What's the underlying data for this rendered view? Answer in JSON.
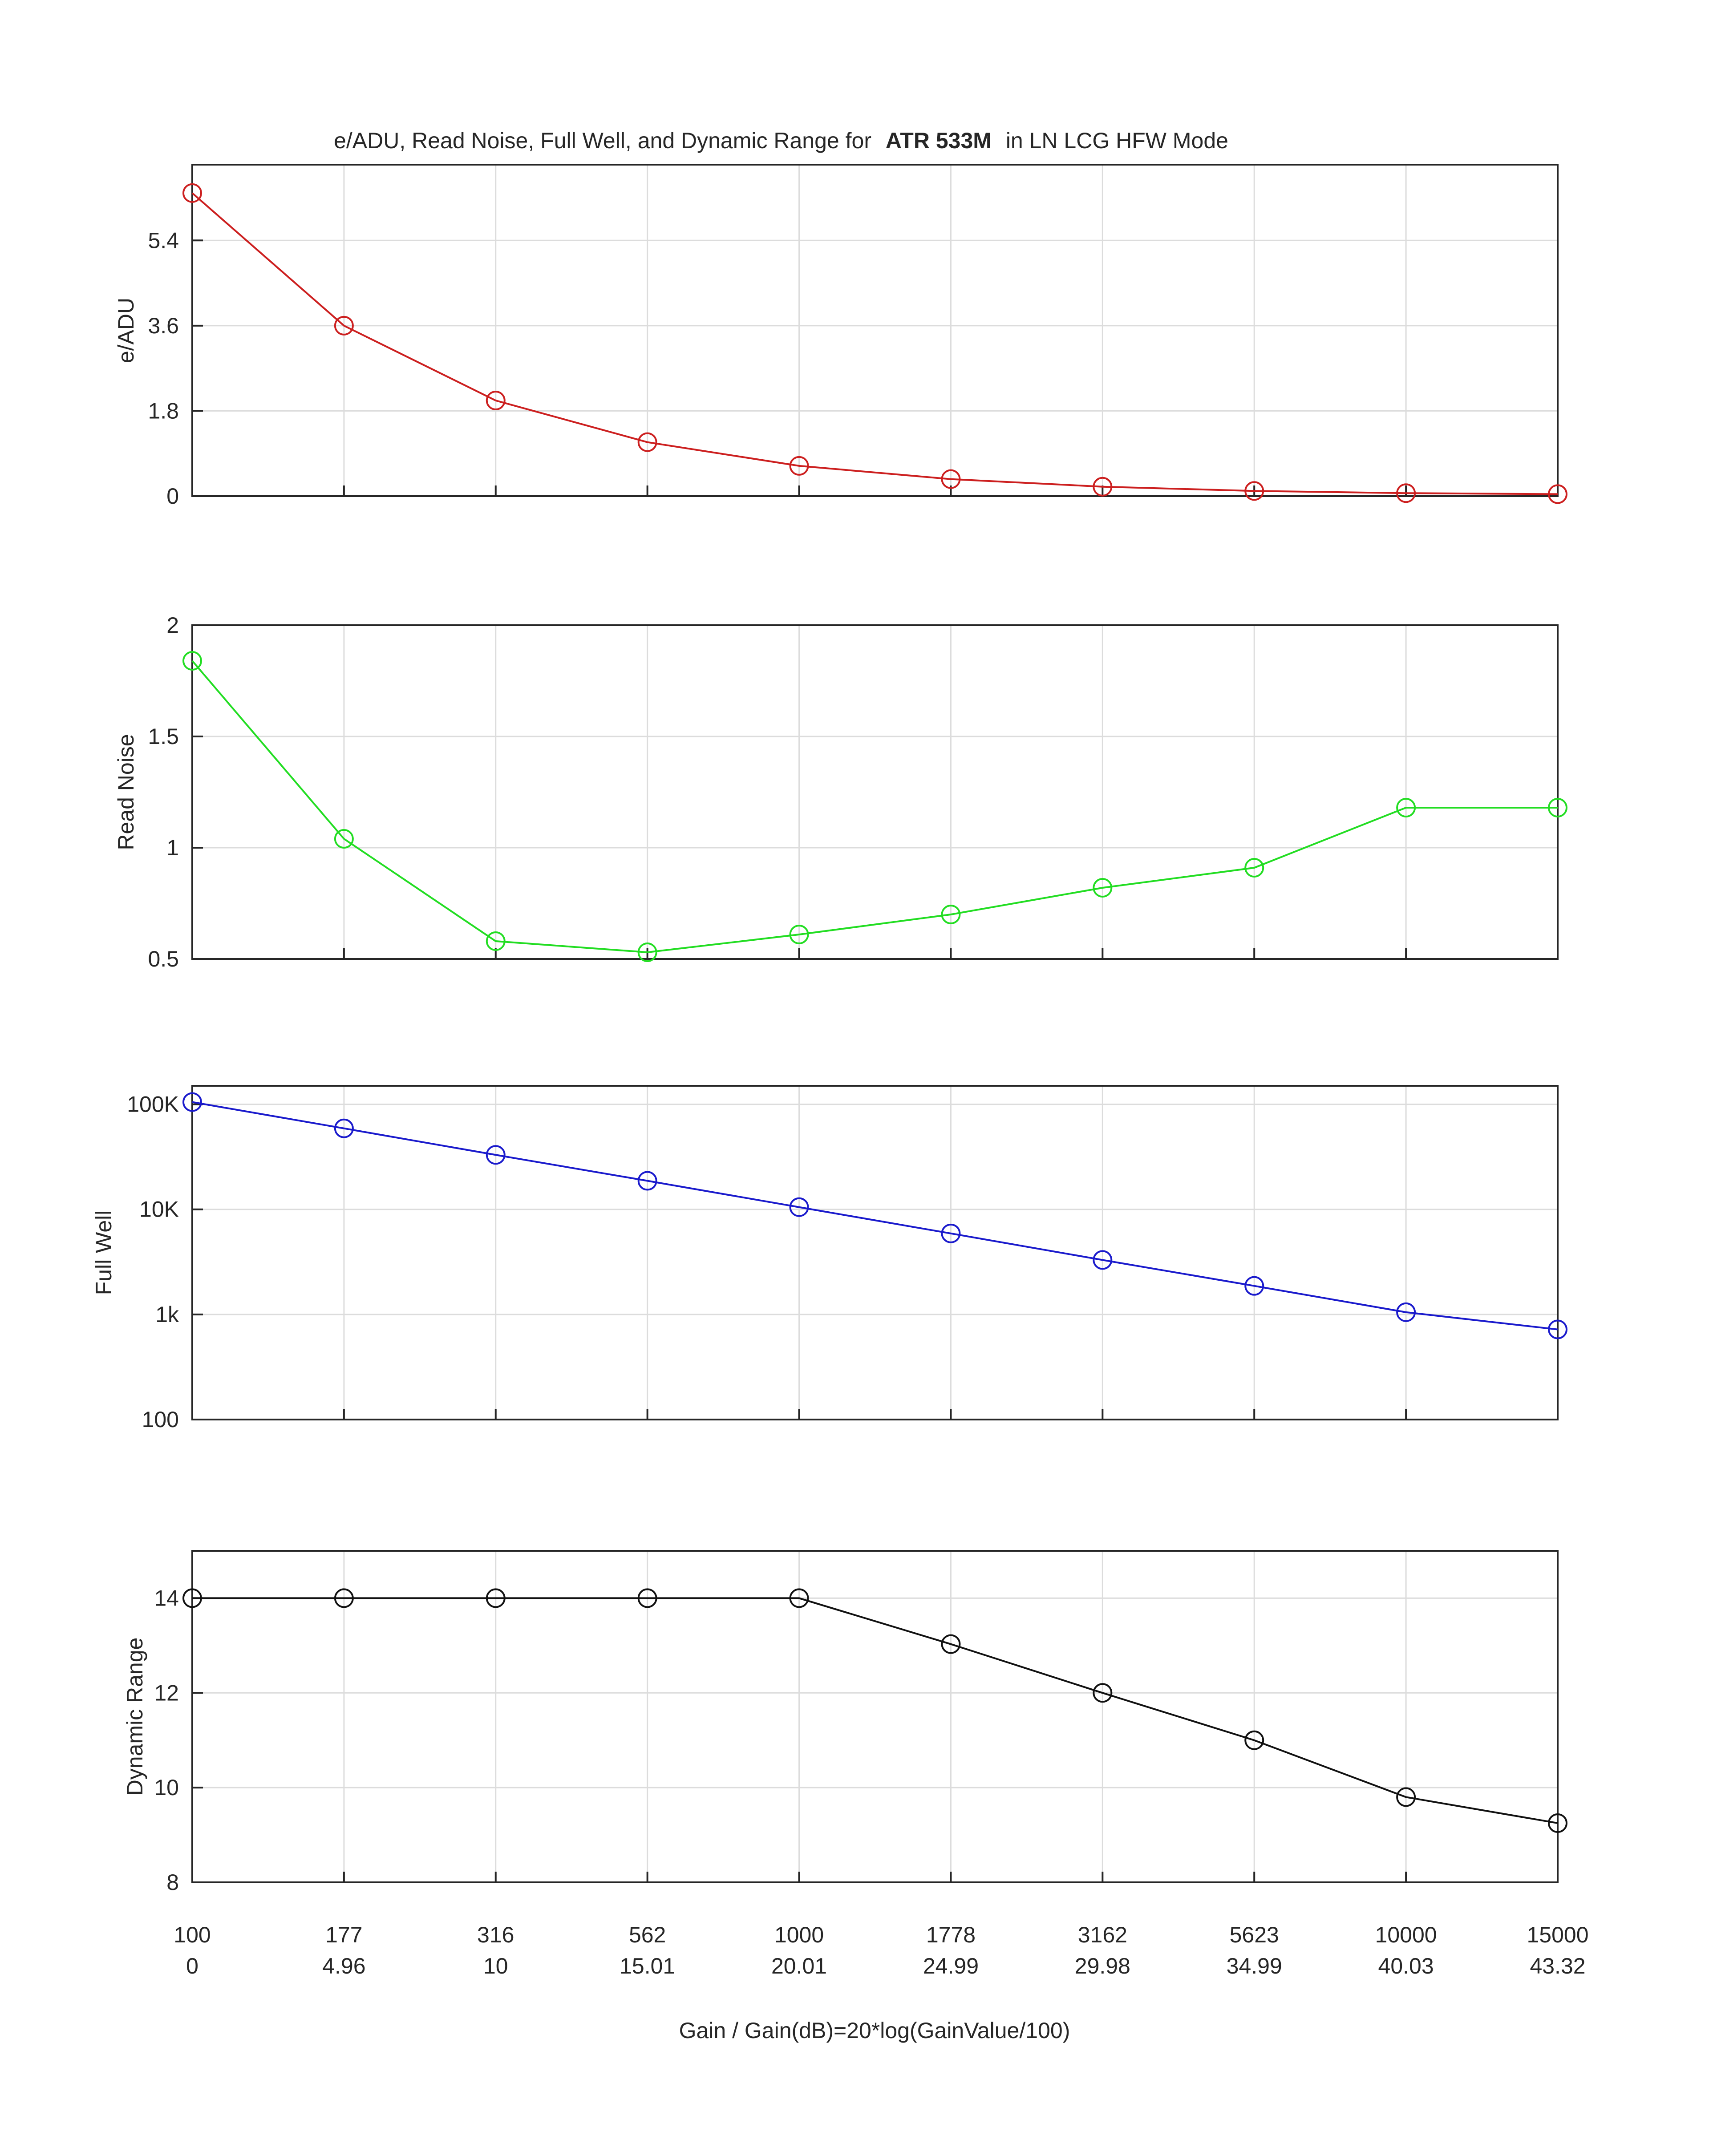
{
  "chart_data": {
    "type": "line",
    "title_main": "e/ADU, Read Noise, Full Well, and Dynamic Range for",
    "title_bold": "ATR 533M",
    "title_tail": "in LN LCG HFW Mode",
    "xlabel": "Gain / Gain(dB)=20*log(GainValue/100)",
    "x_ticks_gain": [
      "100",
      "177",
      "316",
      "562",
      "1000",
      "1778",
      "3162",
      "5623",
      "10000",
      "15000"
    ],
    "x_ticks_db": [
      "0",
      "4.96",
      "10",
      "15.01",
      "20.01",
      "24.99",
      "29.98",
      "34.99",
      "40.03",
      "43.32"
    ],
    "grid": true,
    "panels": [
      {
        "key": "eadu",
        "ylabel": "e/ADU",
        "scale": "linear",
        "ylim": [
          0,
          7.0
        ],
        "yticks": [
          0,
          1.8,
          3.6,
          5.4
        ],
        "ytick_labels": [
          "0",
          "1.8",
          "3.6",
          "5.4"
        ],
        "color": "#cc1f1f",
        "values": [
          6.4,
          3.6,
          2.02,
          1.14,
          0.64,
          0.36,
          0.2,
          0.11,
          0.064,
          0.043
        ]
      },
      {
        "key": "read_noise",
        "ylabel": "Read Noise",
        "scale": "linear",
        "ylim": [
          0.5,
          2.0
        ],
        "yticks": [
          0.5,
          1,
          1.5,
          2
        ],
        "ytick_labels": [
          "0.5",
          "1",
          "1.5",
          "2"
        ],
        "color": "#22dd22",
        "values": [
          1.84,
          1.04,
          0.58,
          0.53,
          0.61,
          0.7,
          0.82,
          0.91,
          1.18,
          1.18
        ]
      },
      {
        "key": "full_well",
        "ylabel": "Full Well",
        "scale": "log",
        "ylim": [
          100,
          150000
        ],
        "yticks": [
          100,
          1000,
          10000,
          100000
        ],
        "ytick_labels": [
          "100",
          "1k",
          "10K",
          "100K"
        ],
        "color": "#1a1acc",
        "values": [
          105000,
          59000,
          33000,
          18700,
          10500,
          5900,
          3300,
          1870,
          1050,
          720
        ]
      },
      {
        "key": "dynamic_range",
        "ylabel": "Dynamic Range",
        "scale": "linear",
        "ylim": [
          8,
          15
        ],
        "yticks": [
          8,
          10,
          12,
          14
        ],
        "ytick_labels": [
          "8",
          "10",
          "12",
          "14"
        ],
        "color": "#111111",
        "values": [
          14,
          14,
          14,
          14,
          14,
          13.03,
          12,
          11,
          9.8,
          9.25
        ]
      }
    ]
  }
}
